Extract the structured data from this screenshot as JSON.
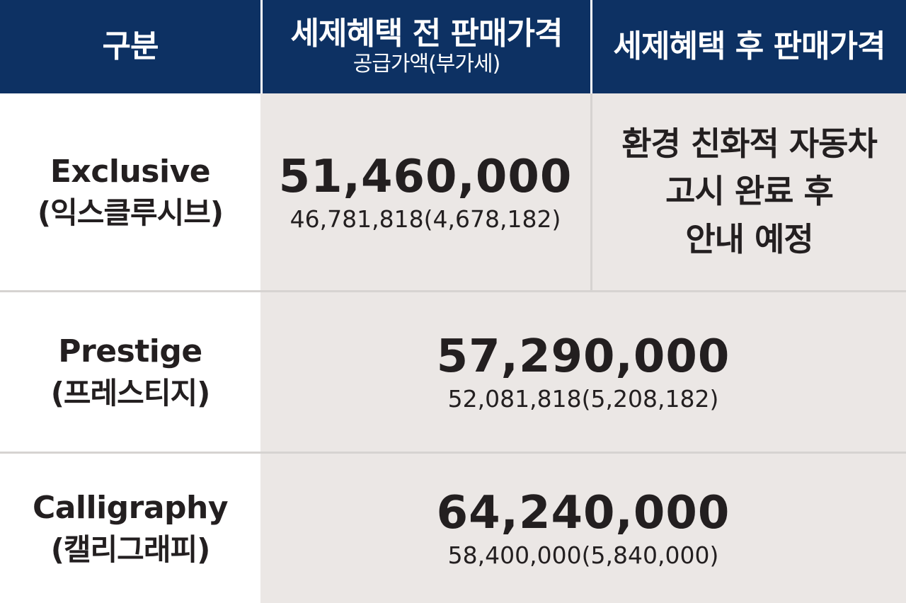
{
  "header": {
    "category_label": "구분",
    "before_label": "세제혜택 전 판매가격",
    "before_sub": "공급가액(부가세)",
    "after_label": "세제혜택 후 판매가격"
  },
  "rows": [
    {
      "name_en": "Exclusive",
      "name_ko": "(익스클루시브)",
      "price": "51,460,000",
      "breakdown": "46,781,818(4,678,182)",
      "after_notice": [
        "환경 친화적 자동차",
        "고시 완료 후",
        "안내 예정"
      ]
    },
    {
      "name_en": "Prestige",
      "name_ko": "(프레스티지)",
      "price": "57,290,000",
      "breakdown": "52,081,818(5,208,182)"
    },
    {
      "name_en": "Calligraphy",
      "name_ko": "(캘리그래피)",
      "price": "64,240,000",
      "breakdown": "58,400,000(5,840,000)"
    }
  ],
  "colors": {
    "header_bg": "#0d3163",
    "cell_bg": "#ebe7e5",
    "divider": "#d6d3d1",
    "text": "#231f20"
  }
}
